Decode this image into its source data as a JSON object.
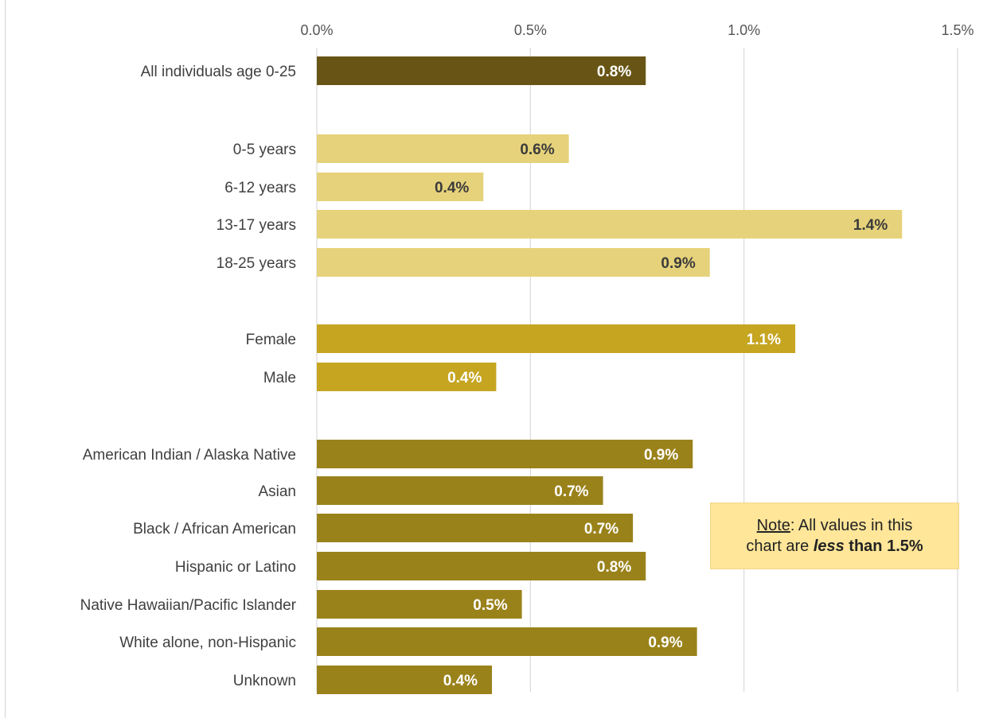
{
  "title": "",
  "note": {
    "prefix": "Note",
    "line1_rest": ": All values in this",
    "line2_start": "chart are ",
    "line2_emph": "less",
    "line2_end": " than 1.5%"
  },
  "colors": {
    "total": "#685515",
    "age": "#e6d27a",
    "gender": "#c6a521",
    "race": "#9a821b",
    "grid": "#d9d9d9"
  },
  "chart_data": {
    "type": "bar",
    "orientation": "horizontal",
    "xlim": [
      0,
      0.015
    ],
    "ticks": [
      "0.0%",
      "0.5%",
      "1.0%",
      "1.5%"
    ],
    "tick_values": [
      0,
      0.005,
      0.01,
      0.015
    ],
    "grid": true,
    "categories": [
      {
        "label": "All individuals age 0-25",
        "value": 0.0077,
        "data_label": "0.8%",
        "group": "total"
      },
      {
        "label": "0-5 years",
        "value": 0.0059,
        "data_label": "0.6%",
        "group": "age"
      },
      {
        "label": "6-12 years",
        "value": 0.0039,
        "data_label": "0.4%",
        "group": "age"
      },
      {
        "label": "13-17 years",
        "value": 0.0137,
        "data_label": "1.4%",
        "group": "age"
      },
      {
        "label": "18-25 years",
        "value": 0.0092,
        "data_label": "0.9%",
        "group": "age"
      },
      {
        "label": "Female",
        "value": 0.0112,
        "data_label": "1.1%",
        "group": "gender"
      },
      {
        "label": "Male",
        "value": 0.0042,
        "data_label": "0.4%",
        "group": "gender"
      },
      {
        "label": "American Indian / Alaska Native",
        "value": 0.0088,
        "data_label": "0.9%",
        "group": "race"
      },
      {
        "label": "Asian",
        "value": 0.0067,
        "data_label": "0.7%",
        "group": "race"
      },
      {
        "label": "Black / African American",
        "value": 0.0074,
        "data_label": "0.7%",
        "group": "race"
      },
      {
        "label": "Hispanic or Latino",
        "value": 0.0077,
        "data_label": "0.8%",
        "group": "race"
      },
      {
        "label": "Native Hawaiian/Pacific Islander",
        "value": 0.0048,
        "data_label": "0.5%",
        "group": "race"
      },
      {
        "label": "White alone, non-Hispanic",
        "value": 0.0089,
        "data_label": "0.9%",
        "group": "race"
      },
      {
        "label": "Unknown",
        "value": 0.0041,
        "data_label": "0.4%",
        "group": "race"
      }
    ]
  }
}
